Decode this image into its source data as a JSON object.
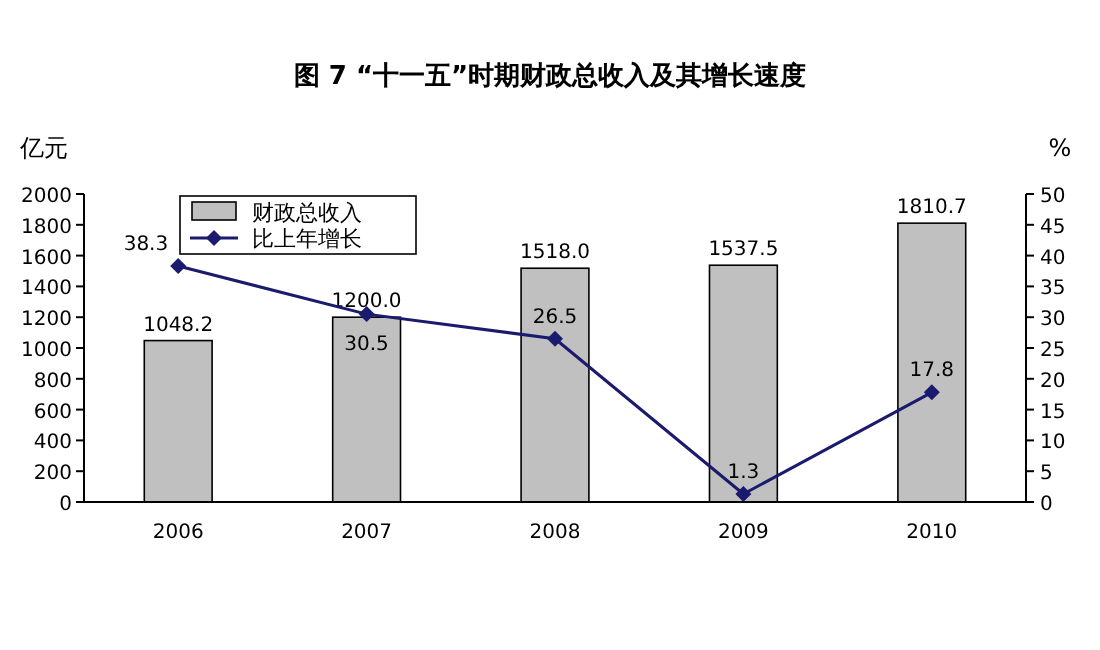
{
  "chart_data": {
    "type": "bar",
    "title": "图 7 “十一五”时期财政总收入及其增长速度",
    "ylabel": "亿元",
    "y2label": "%",
    "categories": [
      "2006",
      "2007",
      "2008",
      "2009",
      "2010"
    ],
    "series": [
      {
        "name": "财政总收入",
        "color": "#c0c0c0",
        "values": [
          1048.2,
          1200.0,
          1518.0,
          1537.5,
          1810.7
        ],
        "value_labels": [
          "1048.2",
          "1200.0",
          "1518.0",
          "1537.5",
          "1810.7"
        ]
      },
      {
        "name": "比上年增长",
        "type": "line",
        "axis": "y2",
        "color": "#1a1a6e",
        "marker": "diamond",
        "values": [
          38.3,
          30.5,
          26.5,
          1.3,
          17.8
        ],
        "value_labels": [
          "38.3",
          "30.5",
          "26.5",
          "1.3",
          "17.8"
        ]
      }
    ],
    "ylim": [
      0,
      2000
    ],
    "yticks": [
      0,
      200,
      400,
      600,
      800,
      1000,
      1200,
      1400,
      1600,
      1800,
      2000
    ],
    "y2lim": [
      0,
      50
    ],
    "y2ticks": [
      0,
      5,
      10,
      15,
      20,
      25,
      30,
      35,
      40,
      45,
      50
    ],
    "legend": "top left",
    "grid": false
  }
}
